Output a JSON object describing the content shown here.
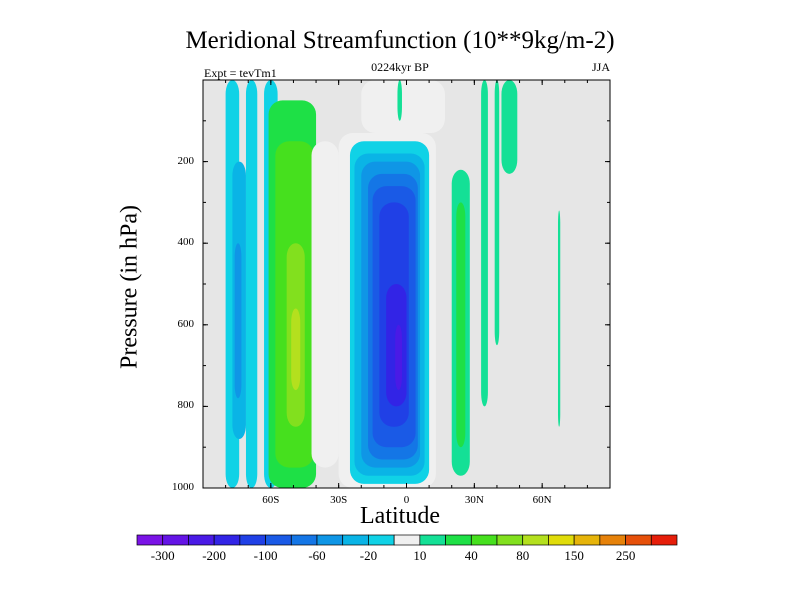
{
  "chart_data": {
    "type": "heatmap",
    "title": "Meridional Streamfunction (10**9kg/m-2)",
    "subtitle_left": "Expt = tevTm1",
    "subtitle_center": "0224kyr BP",
    "subtitle_right": "JJA",
    "xlabel": "Latitude",
    "ylabel": "Pressure (in hPa)",
    "xlim": [
      -90,
      90
    ],
    "ylim": [
      1000,
      0
    ],
    "x_ticks": [
      {
        "value": -60,
        "label": "60S"
      },
      {
        "value": -30,
        "label": "30S"
      },
      {
        "value": 0,
        "label": "0"
      },
      {
        "value": 30,
        "label": "30N"
      },
      {
        "value": 60,
        "label": "60N"
      }
    ],
    "y_ticks": [
      {
        "value": 200,
        "label": "200"
      },
      {
        "value": 400,
        "label": "400"
      },
      {
        "value": 600,
        "label": "600"
      },
      {
        "value": 800,
        "label": "800"
      },
      {
        "value": 1000,
        "label": "1000"
      }
    ],
    "missing_color": "#e6e6e6",
    "levels": [
      -300,
      -250,
      -200,
      -150,
      -100,
      -80,
      -60,
      -40,
      -20,
      -10,
      10,
      20,
      40,
      60,
      80,
      100,
      150,
      200,
      250,
      300
    ],
    "colors": [
      "#7a13e6",
      "#6414e6",
      "#4a1ae6",
      "#3224e6",
      "#2040e6",
      "#1a5ae6",
      "#1476e6",
      "#0f96e6",
      "#0ab4e6",
      "#10d2e6",
      "#f0f0f0",
      "#14e096",
      "#1ee046",
      "#46e01e",
      "#82e01e",
      "#b4e01e",
      "#e0dc0a",
      "#e6b40a",
      "#e6820a",
      "#e6500a",
      "#e61e0a"
    ],
    "colorbar_labels": [
      {
        "level": -300,
        "label": "-300"
      },
      {
        "level": -200,
        "label": "-200"
      },
      {
        "level": -100,
        "label": "-100"
      },
      {
        "level": -60,
        "label": "-60"
      },
      {
        "level": -20,
        "label": "-20"
      },
      {
        "level": 10,
        "label": "10"
      },
      {
        "level": 40,
        "label": "40"
      },
      {
        "level": 80,
        "label": "80"
      },
      {
        "level": 150,
        "label": "150"
      },
      {
        "level": 250,
        "label": "250"
      }
    ],
    "cells": [
      {
        "lat": [
          -80,
          -74
        ],
        "p": [
          0,
          1000
        ],
        "value": -20
      },
      {
        "lat": [
          -77,
          -71
        ],
        "p": [
          200,
          880
        ],
        "value": -40
      },
      {
        "lat": [
          -76,
          -73
        ],
        "p": [
          400,
          780
        ],
        "value": -60
      },
      {
        "lat": [
          -71,
          -66
        ],
        "p": [
          0,
          1000
        ],
        "value": -20
      },
      {
        "lat": [
          -63,
          -57
        ],
        "p": [
          0,
          1000
        ],
        "value": -20
      },
      {
        "lat": [
          -61,
          -40
        ],
        "p": [
          50,
          1000
        ],
        "value": 20
      },
      {
        "lat": [
          -58,
          -41
        ],
        "p": [
          150,
          950
        ],
        "value": 40
      },
      {
        "lat": [
          -53,
          -45
        ],
        "p": [
          400,
          850
        ],
        "value": 60
      },
      {
        "lat": [
          -51,
          -47
        ],
        "p": [
          560,
          760
        ],
        "value": 80
      },
      {
        "lat": [
          -42,
          -30
        ],
        "p": [
          150,
          950
        ],
        "value": -10
      },
      {
        "lat": [
          -30,
          13
        ],
        "p": [
          130,
          1000
        ],
        "value": -10
      },
      {
        "lat": [
          -25,
          10
        ],
        "p": [
          150,
          990
        ],
        "value": -20
      },
      {
        "lat": [
          -23,
          8
        ],
        "p": [
          180,
          970
        ],
        "value": -40
      },
      {
        "lat": [
          -20,
          6
        ],
        "p": [
          200,
          950
        ],
        "value": -60
      },
      {
        "lat": [
          -17,
          5
        ],
        "p": [
          230,
          930
        ],
        "value": -80
      },
      {
        "lat": [
          -15,
          4
        ],
        "p": [
          260,
          900
        ],
        "value": -100
      },
      {
        "lat": [
          -12,
          1
        ],
        "p": [
          300,
          850
        ],
        "value": -150
      },
      {
        "lat": [
          -9,
          0
        ],
        "p": [
          500,
          800
        ],
        "value": -200
      },
      {
        "lat": [
          -5,
          -2
        ],
        "p": [
          600,
          760
        ],
        "value": -250
      },
      {
        "lat": [
          -20,
          17
        ],
        "p": [
          0,
          130
        ],
        "value": -10
      },
      {
        "lat": [
          -4,
          -2
        ],
        "p": [
          0,
          100
        ],
        "value": 10
      },
      {
        "lat": [
          20,
          28
        ],
        "p": [
          220,
          970
        ],
        "value": 10
      },
      {
        "lat": [
          22,
          26
        ],
        "p": [
          300,
          900
        ],
        "value": 20
      },
      {
        "lat": [
          33,
          36
        ],
        "p": [
          0,
          800
        ],
        "value": 10
      },
      {
        "lat": [
          39,
          41
        ],
        "p": [
          0,
          650
        ],
        "value": 10
      },
      {
        "lat": [
          42,
          49
        ],
        "p": [
          0,
          230
        ],
        "value": 10
      },
      {
        "lat": [
          67,
          68
        ],
        "p": [
          320,
          850
        ],
        "value": 10
      }
    ]
  }
}
